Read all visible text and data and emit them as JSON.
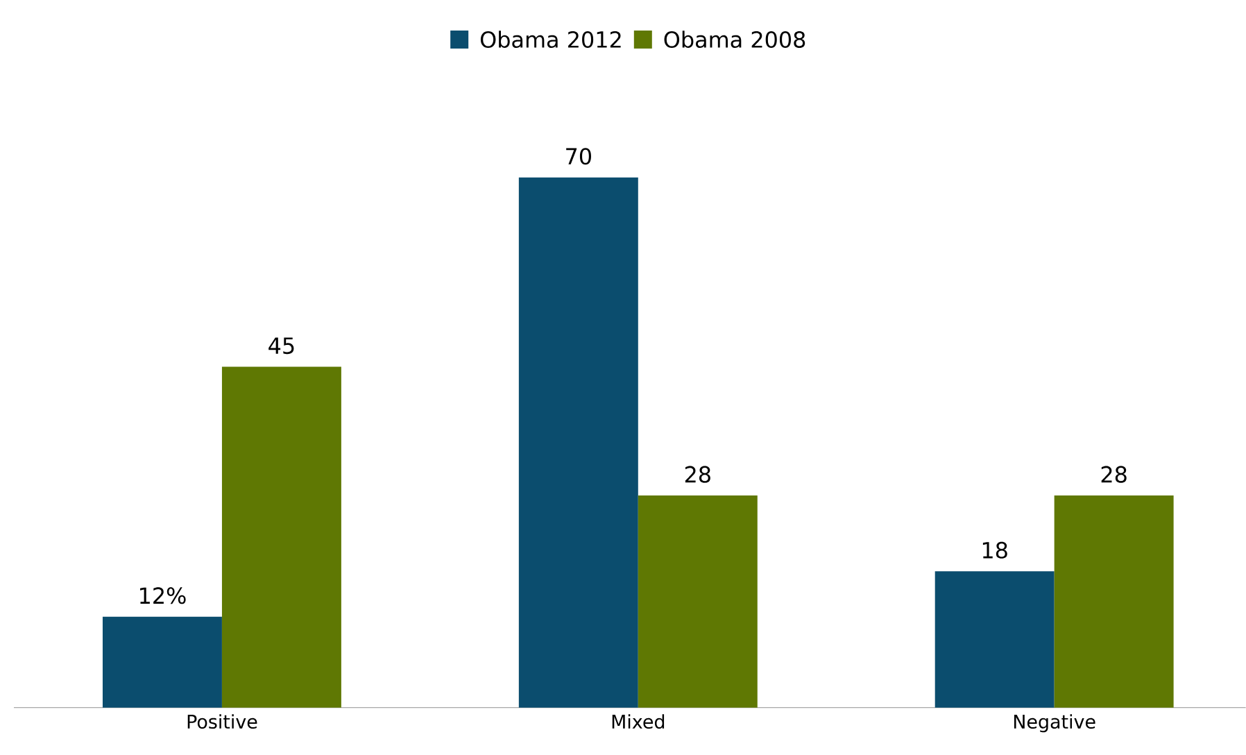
{
  "chart_data": {
    "type": "bar",
    "categories": [
      "Positive",
      "Mixed",
      "Negative"
    ],
    "series": [
      {
        "name": "Obama 2012",
        "color": "#0b4d6e",
        "values": [
          12,
          70,
          18
        ],
        "value_labels": [
          "12%",
          "70",
          "18"
        ]
      },
      {
        "name": "Obama 2008",
        "color": "#5f7803",
        "values": [
          45,
          28,
          28
        ],
        "value_labels": [
          "45",
          "28",
          "28"
        ]
      }
    ],
    "legend": "top"
  }
}
